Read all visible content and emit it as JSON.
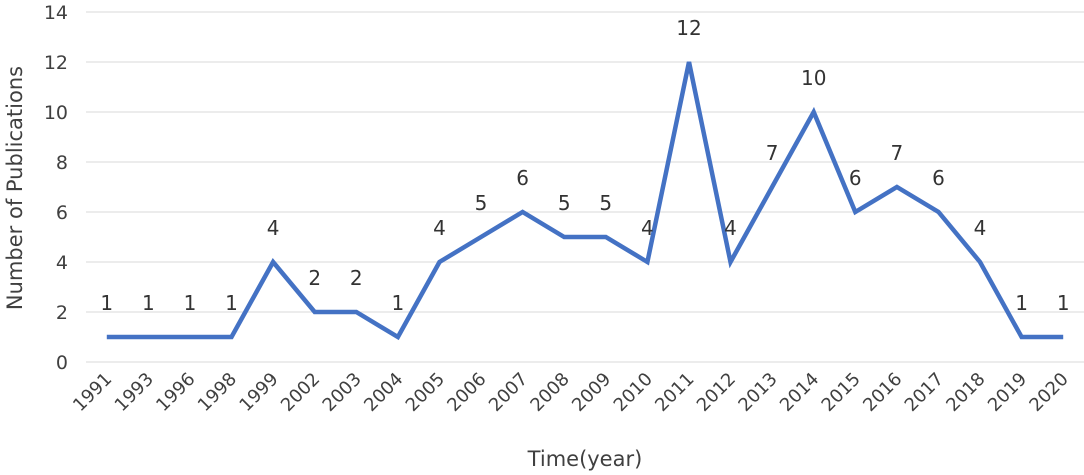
{
  "chart_data": {
    "type": "line",
    "categories": [
      "1991",
      "1993",
      "1996",
      "1998",
      "1999",
      "2002",
      "2003",
      "2004",
      "2005",
      "2006",
      "2007",
      "2008",
      "2009",
      "2010",
      "2011",
      "2012",
      "2013",
      "2014",
      "2015",
      "2016",
      "2017",
      "2018",
      "2019",
      "2020"
    ],
    "series": [
      {
        "values": [
          1,
          1,
          1,
          1,
          4,
          2,
          2,
          1,
          4,
          5,
          6,
          5,
          5,
          4,
          12,
          4,
          7,
          10,
          6,
          7,
          6,
          4,
          1,
          1
        ]
      }
    ],
    "xlabel": "Time(year)",
    "ylabel": "Number of Publications",
    "ylim": [
      0,
      14
    ],
    "yticks": [
      0,
      2,
      4,
      6,
      8,
      10,
      12,
      14
    ],
    "grid": true,
    "data_labels": true,
    "line_color": "#4472c4"
  }
}
